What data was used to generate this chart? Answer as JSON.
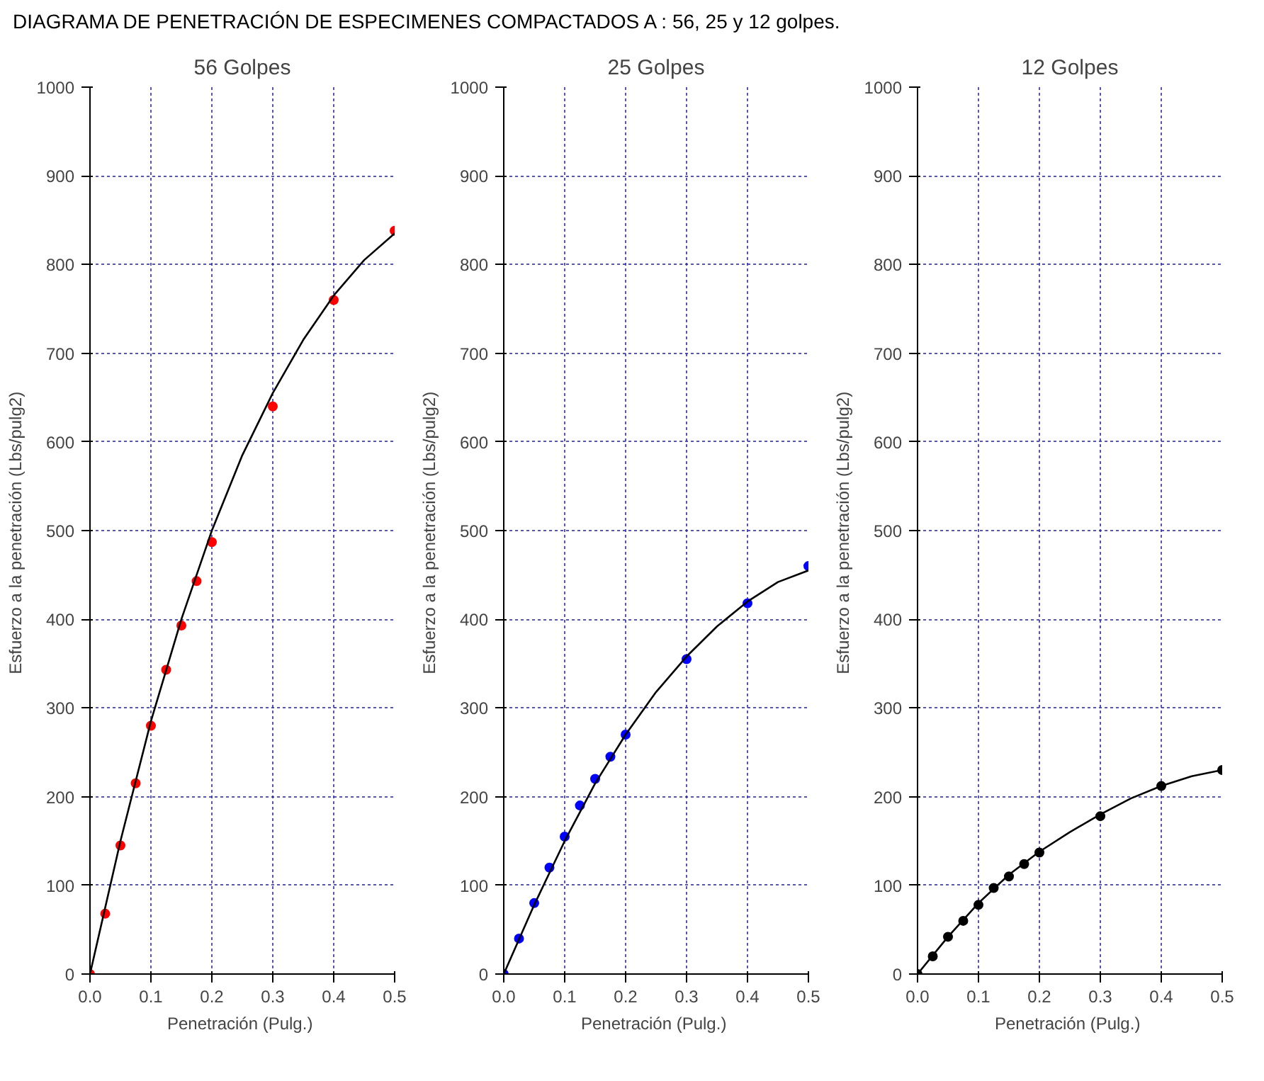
{
  "chart_data": [
    {
      "type": "scatter",
      "title": "DIAGRAMA DE PENETRACIÓN DE ESPECIMENES COMPACTADOS A : 56, 25 y 12 golpes.",
      "subtitle": "56 Golpes",
      "xlabel": "Penetración  (Pulg.)",
      "ylabel": "Esfuerzo a la penetración  (Lbs/pulg2)",
      "x": [
        0,
        0.025,
        0.05,
        0.075,
        0.1,
        0.125,
        0.15,
        0.175,
        0.2,
        0.3,
        0.4,
        0.5
      ],
      "xlim": [
        0,
        0.5
      ],
      "xticks": [
        {
          "value": 0,
          "label": "0.0"
        },
        {
          "value": 0.1,
          "label": "0.1"
        },
        {
          "value": 0.2,
          "label": "0.2"
        },
        {
          "value": 0.3,
          "label": "0.3"
        },
        {
          "value": 0.4,
          "label": "0.4"
        },
        {
          "value": 0.5,
          "label": "0.5"
        }
      ],
      "ylim": [
        0,
        1000
      ],
      "yticks": [
        0,
        100,
        200,
        300,
        400,
        500,
        600,
        700,
        800,
        900,
        1000
      ],
      "grid": true,
      "series": [
        {
          "marker": "circle",
          "color": "#ff0000",
          "values": [
            0,
            68,
            145,
            215,
            280,
            343,
            393,
            443,
            487,
            640,
            760,
            838
          ]
        },
        {
          "type": "line",
          "marker": "none",
          "color": "#000000",
          "x": [
            0,
            0.05,
            0.1,
            0.15,
            0.2,
            0.25,
            0.3,
            0.35,
            0.4,
            0.45,
            0.5
          ],
          "values": [
            0,
            150,
            285,
            400,
            500,
            585,
            655,
            715,
            765,
            805,
            835
          ]
        }
      ]
    },
    {
      "type": "scatter",
      "subtitle": "25 Golpes",
      "xlabel": "Penetración  (Pulg.)",
      "ylabel": "Esfuerzo a la penetración  (Lbs/pulg2)",
      "x": [
        0,
        0.025,
        0.05,
        0.075,
        0.1,
        0.125,
        0.15,
        0.175,
        0.2,
        0.3,
        0.4,
        0.5
      ],
      "xlim": [
        0,
        0.5
      ],
      "xticks": [
        {
          "value": 0,
          "label": "0.0"
        },
        {
          "value": 0.1,
          "label": "0.1"
        },
        {
          "value": 0.2,
          "label": "0.2"
        },
        {
          "value": 0.3,
          "label": "0.3"
        },
        {
          "value": 0.4,
          "label": "0.4"
        },
        {
          "value": 0.5,
          "label": "0.5"
        }
      ],
      "ylim": [
        0,
        1000
      ],
      "yticks": [
        0,
        100,
        200,
        300,
        400,
        500,
        600,
        700,
        800,
        900,
        1000
      ],
      "grid": true,
      "series": [
        {
          "marker": "circle",
          "color": "#0000ff",
          "values": [
            0,
            40,
            80,
            120,
            155,
            190,
            220,
            245,
            270,
            355,
            418,
            460
          ]
        },
        {
          "type": "line",
          "marker": "none",
          "color": "#000000",
          "x": [
            0,
            0.05,
            0.1,
            0.15,
            0.2,
            0.25,
            0.3,
            0.35,
            0.4,
            0.45,
            0.5
          ],
          "values": [
            0,
            78,
            150,
            215,
            270,
            318,
            358,
            392,
            420,
            442,
            455
          ]
        }
      ]
    },
    {
      "type": "scatter",
      "subtitle": "12 Golpes",
      "xlabel": "Penetración  (Pulg.)",
      "ylabel": "Esfuerzo a la penetración  (Lbs/pulg2)",
      "x": [
        0,
        0.025,
        0.05,
        0.075,
        0.1,
        0.125,
        0.15,
        0.175,
        0.2,
        0.3,
        0.4,
        0.5
      ],
      "xlim": [
        0,
        0.5
      ],
      "xticks": [
        {
          "value": 0,
          "label": "0.0"
        },
        {
          "value": 0.1,
          "label": "0.1"
        },
        {
          "value": 0.2,
          "label": "0.2"
        },
        {
          "value": 0.3,
          "label": "0.3"
        },
        {
          "value": 0.4,
          "label": "0.4"
        },
        {
          "value": 0.5,
          "label": "0.5"
        }
      ],
      "ylim": [
        0,
        1000
      ],
      "yticks": [
        0,
        100,
        200,
        300,
        400,
        500,
        600,
        700,
        800,
        900,
        1000
      ],
      "grid": true,
      "series": [
        {
          "marker": "circle",
          "color": "#000000",
          "values": [
            0,
            20,
            42,
            60,
            78,
            97,
            110,
            124,
            137,
            178,
            212,
            230
          ]
        },
        {
          "type": "line",
          "marker": "none",
          "color": "#000000",
          "x": [
            0,
            0.05,
            0.1,
            0.15,
            0.2,
            0.25,
            0.3,
            0.35,
            0.4,
            0.45,
            0.5
          ],
          "values": [
            0,
            42,
            80,
            112,
            138,
            160,
            180,
            198,
            212,
            223,
            230
          ]
        }
      ]
    }
  ]
}
